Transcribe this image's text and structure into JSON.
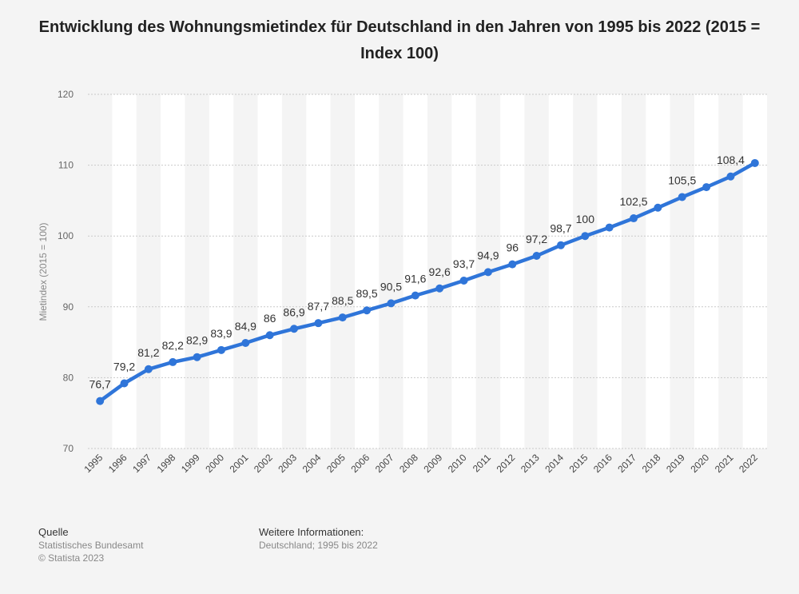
{
  "title": "Entwicklung des Wohnungsmietindex für Deutschland in den Jahren von 1995 bis 2022 (2015 = Index 100)",
  "footer": {
    "source_heading": "Quelle",
    "source_name": "Statistisches Bundesamt",
    "copyright": "© Statista 2023",
    "info_heading": "Weitere Informationen:",
    "info_text": "Deutschland; 1995 bis 2022"
  },
  "chart_data": {
    "type": "line",
    "title": "Entwicklung des Wohnungsmietindex für Deutschland in den Jahren von 1995 bis 2022 (2015 = Index 100)",
    "xlabel": "",
    "ylabel": "Mietindex (2015 = 100)",
    "ylim": [
      70,
      120
    ],
    "yticks": [
      70,
      80,
      90,
      100,
      110,
      120
    ],
    "grid": true,
    "line_color": "#2f75d9",
    "categories": [
      "1995",
      "1996",
      "1997",
      "1998",
      "1999",
      "2000",
      "2001",
      "2002",
      "2003",
      "2004",
      "2005",
      "2006",
      "2007",
      "2008",
      "2009",
      "2010",
      "2011",
      "2012",
      "2013",
      "2014",
      "2015",
      "2016",
      "2017",
      "2018",
      "2019",
      "2020",
      "2021",
      "2022"
    ],
    "values": [
      76.7,
      79.2,
      81.2,
      82.2,
      82.9,
      83.9,
      84.9,
      86,
      86.9,
      87.7,
      88.5,
      89.5,
      90.5,
      91.6,
      92.6,
      93.7,
      94.9,
      96,
      97.2,
      98.7,
      100,
      101.2,
      102.5,
      104,
      105.5,
      106.9,
      108.4,
      110.3
    ],
    "data_labels": [
      "76,7",
      "79,2",
      "81,2",
      "82,2",
      "82,9",
      "83,9",
      "84,9",
      "86",
      "86,9",
      "87,7",
      "88,5",
      "89,5",
      "90,5",
      "91,6",
      "92,6",
      "93,7",
      "94,9",
      "96",
      "97,2",
      "98,7",
      "100",
      "",
      "102,5",
      "",
      "105,5",
      "",
      "108,4",
      ""
    ]
  }
}
